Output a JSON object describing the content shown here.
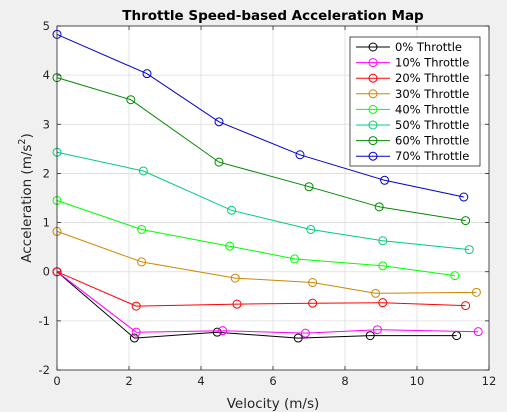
{
  "chart_data": {
    "type": "line",
    "title": "Throttle Speed-based Acceleration Map",
    "xlabel": "Velocity (m/s)",
    "ylabel": "Acceleration (m/s",
    "ylabel_sup": "2",
    "ylabel_close": ")",
    "xlim": [
      0,
      12
    ],
    "ylim": [
      -2,
      5
    ],
    "xticks": [
      0,
      2,
      4,
      6,
      8,
      10,
      12
    ],
    "yticks": [
      -2,
      -1,
      0,
      1,
      2,
      3,
      4,
      5
    ],
    "grid": true,
    "legend_position": "top-right",
    "marker": "open-circle",
    "series": [
      {
        "name": "0% Throttle",
        "color": "#000000",
        "x": [
          0,
          2.15,
          4.45,
          6.7,
          8.7,
          11.1
        ],
        "y": [
          0.0,
          -1.35,
          -1.23,
          -1.35,
          -1.3,
          -1.3
        ]
      },
      {
        "name": "10% Throttle",
        "color": "#ff00ff",
        "x": [
          0,
          2.2,
          4.6,
          6.9,
          8.9,
          11.7
        ],
        "y": [
          0.0,
          -1.23,
          -1.2,
          -1.25,
          -1.18,
          -1.22
        ]
      },
      {
        "name": "20% Throttle",
        "color": "#ff0000",
        "x": [
          0,
          2.2,
          5.0,
          7.1,
          9.05,
          11.35
        ],
        "y": [
          0.0,
          -0.7,
          -0.66,
          -0.64,
          -0.63,
          -0.69
        ]
      },
      {
        "name": "30% Throttle",
        "color": "#cc8800",
        "x": [
          0,
          2.35,
          4.95,
          7.1,
          8.85,
          11.65
        ],
        "y": [
          0.82,
          0.2,
          -0.13,
          -0.22,
          -0.44,
          -0.42
        ]
      },
      {
        "name": "40% Throttle",
        "color": "#00ff00",
        "x": [
          0,
          2.35,
          4.8,
          6.6,
          9.05,
          11.05
        ],
        "y": [
          1.45,
          0.86,
          0.52,
          0.26,
          0.12,
          -0.08
        ]
      },
      {
        "name": "50% Throttle",
        "color": "#00cc77",
        "x": [
          0,
          2.4,
          4.85,
          7.05,
          9.05,
          11.45
        ],
        "y": [
          2.43,
          2.05,
          1.25,
          0.86,
          0.63,
          0.45
        ]
      },
      {
        "name": "60% Throttle",
        "color": "#008800",
        "x": [
          0,
          2.05,
          4.5,
          7.0,
          8.95,
          11.35
        ],
        "y": [
          3.95,
          3.5,
          2.23,
          1.73,
          1.32,
          1.04
        ]
      },
      {
        "name": "70% Throttle",
        "color": "#0000cc",
        "x": [
          0,
          2.5,
          4.5,
          6.75,
          9.1,
          11.3
        ],
        "y": [
          4.83,
          4.03,
          3.05,
          2.38,
          1.86,
          1.52
        ]
      }
    ]
  }
}
